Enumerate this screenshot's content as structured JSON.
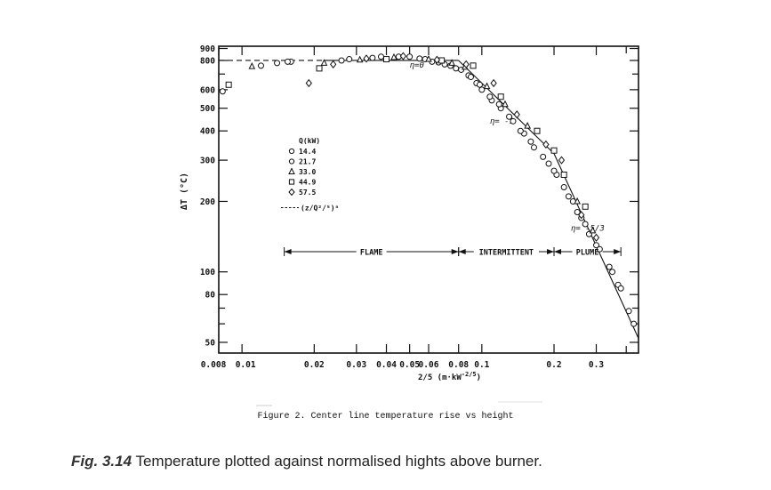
{
  "chart_data": {
    "type": "scatter",
    "xscale": "log",
    "yscale": "log",
    "xlim": [
      0.008,
      0.45
    ],
    "ylim": [
      45,
      920
    ],
    "ylabel": "ΔT (°C)",
    "xlabel": "z/Q^(2/5) (m·kW^(-2/5))",
    "xlabel_main": "2/5 (m·kW",
    "xlabel_sup": "-2/5",
    "xlabel_close": ")",
    "x_ticks": [
      {
        "v": 0.008,
        "label": "0.008"
      },
      {
        "v": 0.01,
        "label": "0.01"
      },
      {
        "v": 0.02,
        "label": "0.02"
      },
      {
        "v": 0.03,
        "label": "0.03"
      },
      {
        "v": 0.04,
        "label": "0.04"
      },
      {
        "v": 0.05,
        "label": "0.05"
      },
      {
        "v": 0.06,
        "label": "0.06"
      },
      {
        "v": 0.08,
        "label": "0.08"
      },
      {
        "v": 0.1,
        "label": "0.1"
      },
      {
        "v": 0.2,
        "label": "0.2"
      },
      {
        "v": 0.3,
        "label": "0.3"
      }
    ],
    "y_ticks": [
      {
        "v": 900,
        "label": "900"
      },
      {
        "v": 800,
        "label": "800"
      },
      {
        "v": 600,
        "label": "600"
      },
      {
        "v": 500,
        "label": "500"
      },
      {
        "v": 400,
        "label": "400"
      },
      {
        "v": 300,
        "label": "300"
      },
      {
        "v": 200,
        "label": "200"
      },
      {
        "v": 100,
        "label": "100"
      },
      {
        "v": 80,
        "label": "80"
      },
      {
        "v": 50,
        "label": "50"
      }
    ],
    "reference_line": {
      "label": "(z/Q^(2/5))^η",
      "segments": [
        {
          "x": [
            0.008,
            0.022
          ],
          "y": [
            800,
            800
          ],
          "style": "dashed"
        },
        {
          "x": [
            0.022,
            0.08
          ],
          "y": [
            800,
            800
          ],
          "style": "solid"
        },
        {
          "x": [
            0.08,
            0.2
          ],
          "y": [
            800,
            320
          ],
          "style": "solid"
        },
        {
          "x": [
            0.2,
            0.45
          ],
          "y": [
            320,
            52
          ],
          "style": "solid"
        }
      ]
    },
    "annotations": [
      {
        "text": "η=0",
        "x": 0.05,
        "y": 745
      },
      {
        "text": "η= -1",
        "x": 0.108,
        "y": 430
      },
      {
        "text": "η= -5/3",
        "x": 0.235,
        "y": 150
      }
    ],
    "regions": [
      {
        "label": "FLAME",
        "x": [
          0.015,
          0.08
        ]
      },
      {
        "label": "INTERMITTENT",
        "x": [
          0.08,
          0.2
        ]
      },
      {
        "label": "PLUME",
        "x": [
          0.2,
          0.38
        ]
      }
    ],
    "region_y": 122,
    "legend": {
      "title": "Q(kW)",
      "position": "upper-left",
      "dash_label": "(z/Q²/⁵)ⁿ"
    },
    "series": [
      {
        "name": "14.4",
        "marker": "circle",
        "points": [
          [
            0.0083,
            590
          ],
          [
            0.012,
            760
          ],
          [
            0.014,
            780
          ],
          [
            0.016,
            790
          ],
          [
            0.026,
            800
          ],
          [
            0.035,
            820
          ],
          [
            0.045,
            830
          ],
          [
            0.055,
            815
          ],
          [
            0.062,
            790
          ],
          [
            0.07,
            770
          ],
          [
            0.078,
            740
          ],
          [
            0.088,
            690
          ],
          [
            0.095,
            640
          ],
          [
            0.1,
            600
          ],
          [
            0.11,
            540
          ],
          [
            0.12,
            500
          ],
          [
            0.135,
            440
          ],
          [
            0.15,
            390
          ],
          [
            0.165,
            340
          ],
          [
            0.19,
            290
          ],
          [
            0.205,
            260
          ],
          [
            0.23,
            210
          ],
          [
            0.25,
            180
          ],
          [
            0.27,
            160
          ],
          [
            0.3,
            130
          ],
          [
            0.34,
            105
          ],
          [
            0.37,
            88
          ],
          [
            0.41,
            68
          ],
          [
            0.43,
            60
          ]
        ]
      },
      {
        "name": "21.7",
        "marker": "circle",
        "points": [
          [
            0.0155,
            790
          ],
          [
            0.028,
            810
          ],
          [
            0.038,
            830
          ],
          [
            0.05,
            830
          ],
          [
            0.058,
            810
          ],
          [
            0.066,
            785
          ],
          [
            0.074,
            760
          ],
          [
            0.082,
            730
          ],
          [
            0.09,
            680
          ],
          [
            0.098,
            630
          ],
          [
            0.108,
            560
          ],
          [
            0.118,
            520
          ],
          [
            0.13,
            460
          ],
          [
            0.145,
            400
          ],
          [
            0.16,
            360
          ],
          [
            0.18,
            310
          ],
          [
            0.2,
            270
          ],
          [
            0.22,
            230
          ],
          [
            0.24,
            200
          ],
          [
            0.26,
            170
          ],
          [
            0.28,
            145
          ],
          [
            0.31,
            125
          ],
          [
            0.35,
            100
          ],
          [
            0.38,
            85
          ]
        ]
      },
      {
        "name": "33.0",
        "marker": "triangle",
        "points": [
          [
            0.011,
            755
          ],
          [
            0.022,
            780
          ],
          [
            0.031,
            805
          ],
          [
            0.043,
            825
          ],
          [
            0.06,
            810
          ],
          [
            0.075,
            780
          ],
          [
            0.085,
            750
          ],
          [
            0.105,
            620
          ],
          [
            0.125,
            520
          ],
          [
            0.155,
            420
          ],
          [
            0.25,
            200
          ],
          [
            0.29,
            150
          ]
        ]
      },
      {
        "name": "44.9",
        "marker": "square",
        "points": [
          [
            0.0088,
            630
          ],
          [
            0.021,
            740
          ],
          [
            0.04,
            810
          ],
          [
            0.068,
            800
          ],
          [
            0.092,
            760
          ],
          [
            0.12,
            560
          ],
          [
            0.17,
            400
          ],
          [
            0.2,
            330
          ],
          [
            0.22,
            260
          ],
          [
            0.27,
            190
          ]
        ]
      },
      {
        "name": "57.5",
        "marker": "diamond",
        "points": [
          [
            0.019,
            640
          ],
          [
            0.024,
            770
          ],
          [
            0.033,
            815
          ],
          [
            0.047,
            835
          ],
          [
            0.065,
            805
          ],
          [
            0.086,
            770
          ],
          [
            0.112,
            640
          ],
          [
            0.14,
            470
          ],
          [
            0.185,
            350
          ],
          [
            0.215,
            300
          ],
          [
            0.26,
            175
          ],
          [
            0.3,
            140
          ]
        ]
      }
    ]
  },
  "figure_caption": "Figure 2.  Center line temperature rise vs height",
  "book_caption_bold": "Fig. 3.14",
  "book_caption_text": " Temperature plotted against normalised hights above burner."
}
